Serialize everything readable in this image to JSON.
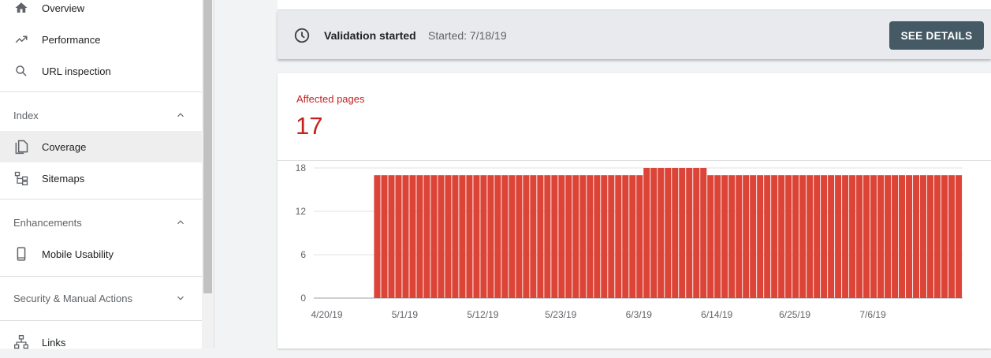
{
  "sidebar": {
    "items_top": [
      {
        "label": "Overview",
        "icon": "home-icon"
      },
      {
        "label": "Performance",
        "icon": "trending-up-icon"
      },
      {
        "label": "URL inspection",
        "icon": "search-icon"
      }
    ],
    "sections": [
      {
        "title": "Index",
        "expanded": true,
        "items": [
          {
            "label": "Coverage",
            "icon": "coverage-icon",
            "active": true
          },
          {
            "label": "Sitemaps",
            "icon": "sitemap-icon"
          }
        ]
      },
      {
        "title": "Enhancements",
        "expanded": true,
        "items": [
          {
            "label": "Mobile Usability",
            "icon": "phone-icon"
          }
        ]
      },
      {
        "title": "Security & Manual Actions",
        "expanded": false,
        "items": []
      }
    ],
    "items_bottom": [
      {
        "label": "Links",
        "icon": "links-icon"
      }
    ]
  },
  "validation": {
    "icon": "clock-icon",
    "title": "Validation started",
    "started": "Started: 7/18/19",
    "button": "SEE DETAILS"
  },
  "affected": {
    "label": "Affected pages",
    "value": "17"
  },
  "colors": {
    "accent_red": "#c5221f",
    "bar_red": "#db4437",
    "button_bg": "#455a64"
  },
  "chart_data": {
    "type": "bar",
    "title": "",
    "xlabel": "",
    "ylabel": "",
    "ylim": [
      0,
      18
    ],
    "yticks": [
      0,
      6,
      12,
      18
    ],
    "x_start": "4/20/19",
    "x_tick_labels": [
      "4/20/19",
      "5/1/19",
      "5/12/19",
      "5/23/19",
      "6/3/19",
      "6/14/19",
      "6/25/19",
      "7/6/19"
    ],
    "series": [
      {
        "values": [
          0,
          0,
          0,
          0,
          0,
          0,
          0,
          0,
          17,
          17,
          17,
          17,
          17,
          17,
          17,
          17,
          17,
          17,
          17,
          17,
          17,
          17,
          17,
          17,
          17,
          17,
          17,
          17,
          17,
          17,
          17,
          17,
          17,
          17,
          17,
          17,
          17,
          17,
          17,
          17,
          17,
          17,
          17,
          17,
          17,
          17,
          18,
          18,
          18,
          18,
          18,
          18,
          18,
          18,
          18,
          17,
          17,
          17,
          17,
          17,
          17,
          17,
          17,
          17,
          17,
          17,
          17,
          17,
          17,
          17,
          17,
          17,
          17,
          17,
          17,
          17,
          17,
          17,
          17,
          17,
          17,
          17,
          17,
          17,
          17,
          17,
          17,
          17,
          17,
          17,
          17
        ]
      }
    ]
  }
}
